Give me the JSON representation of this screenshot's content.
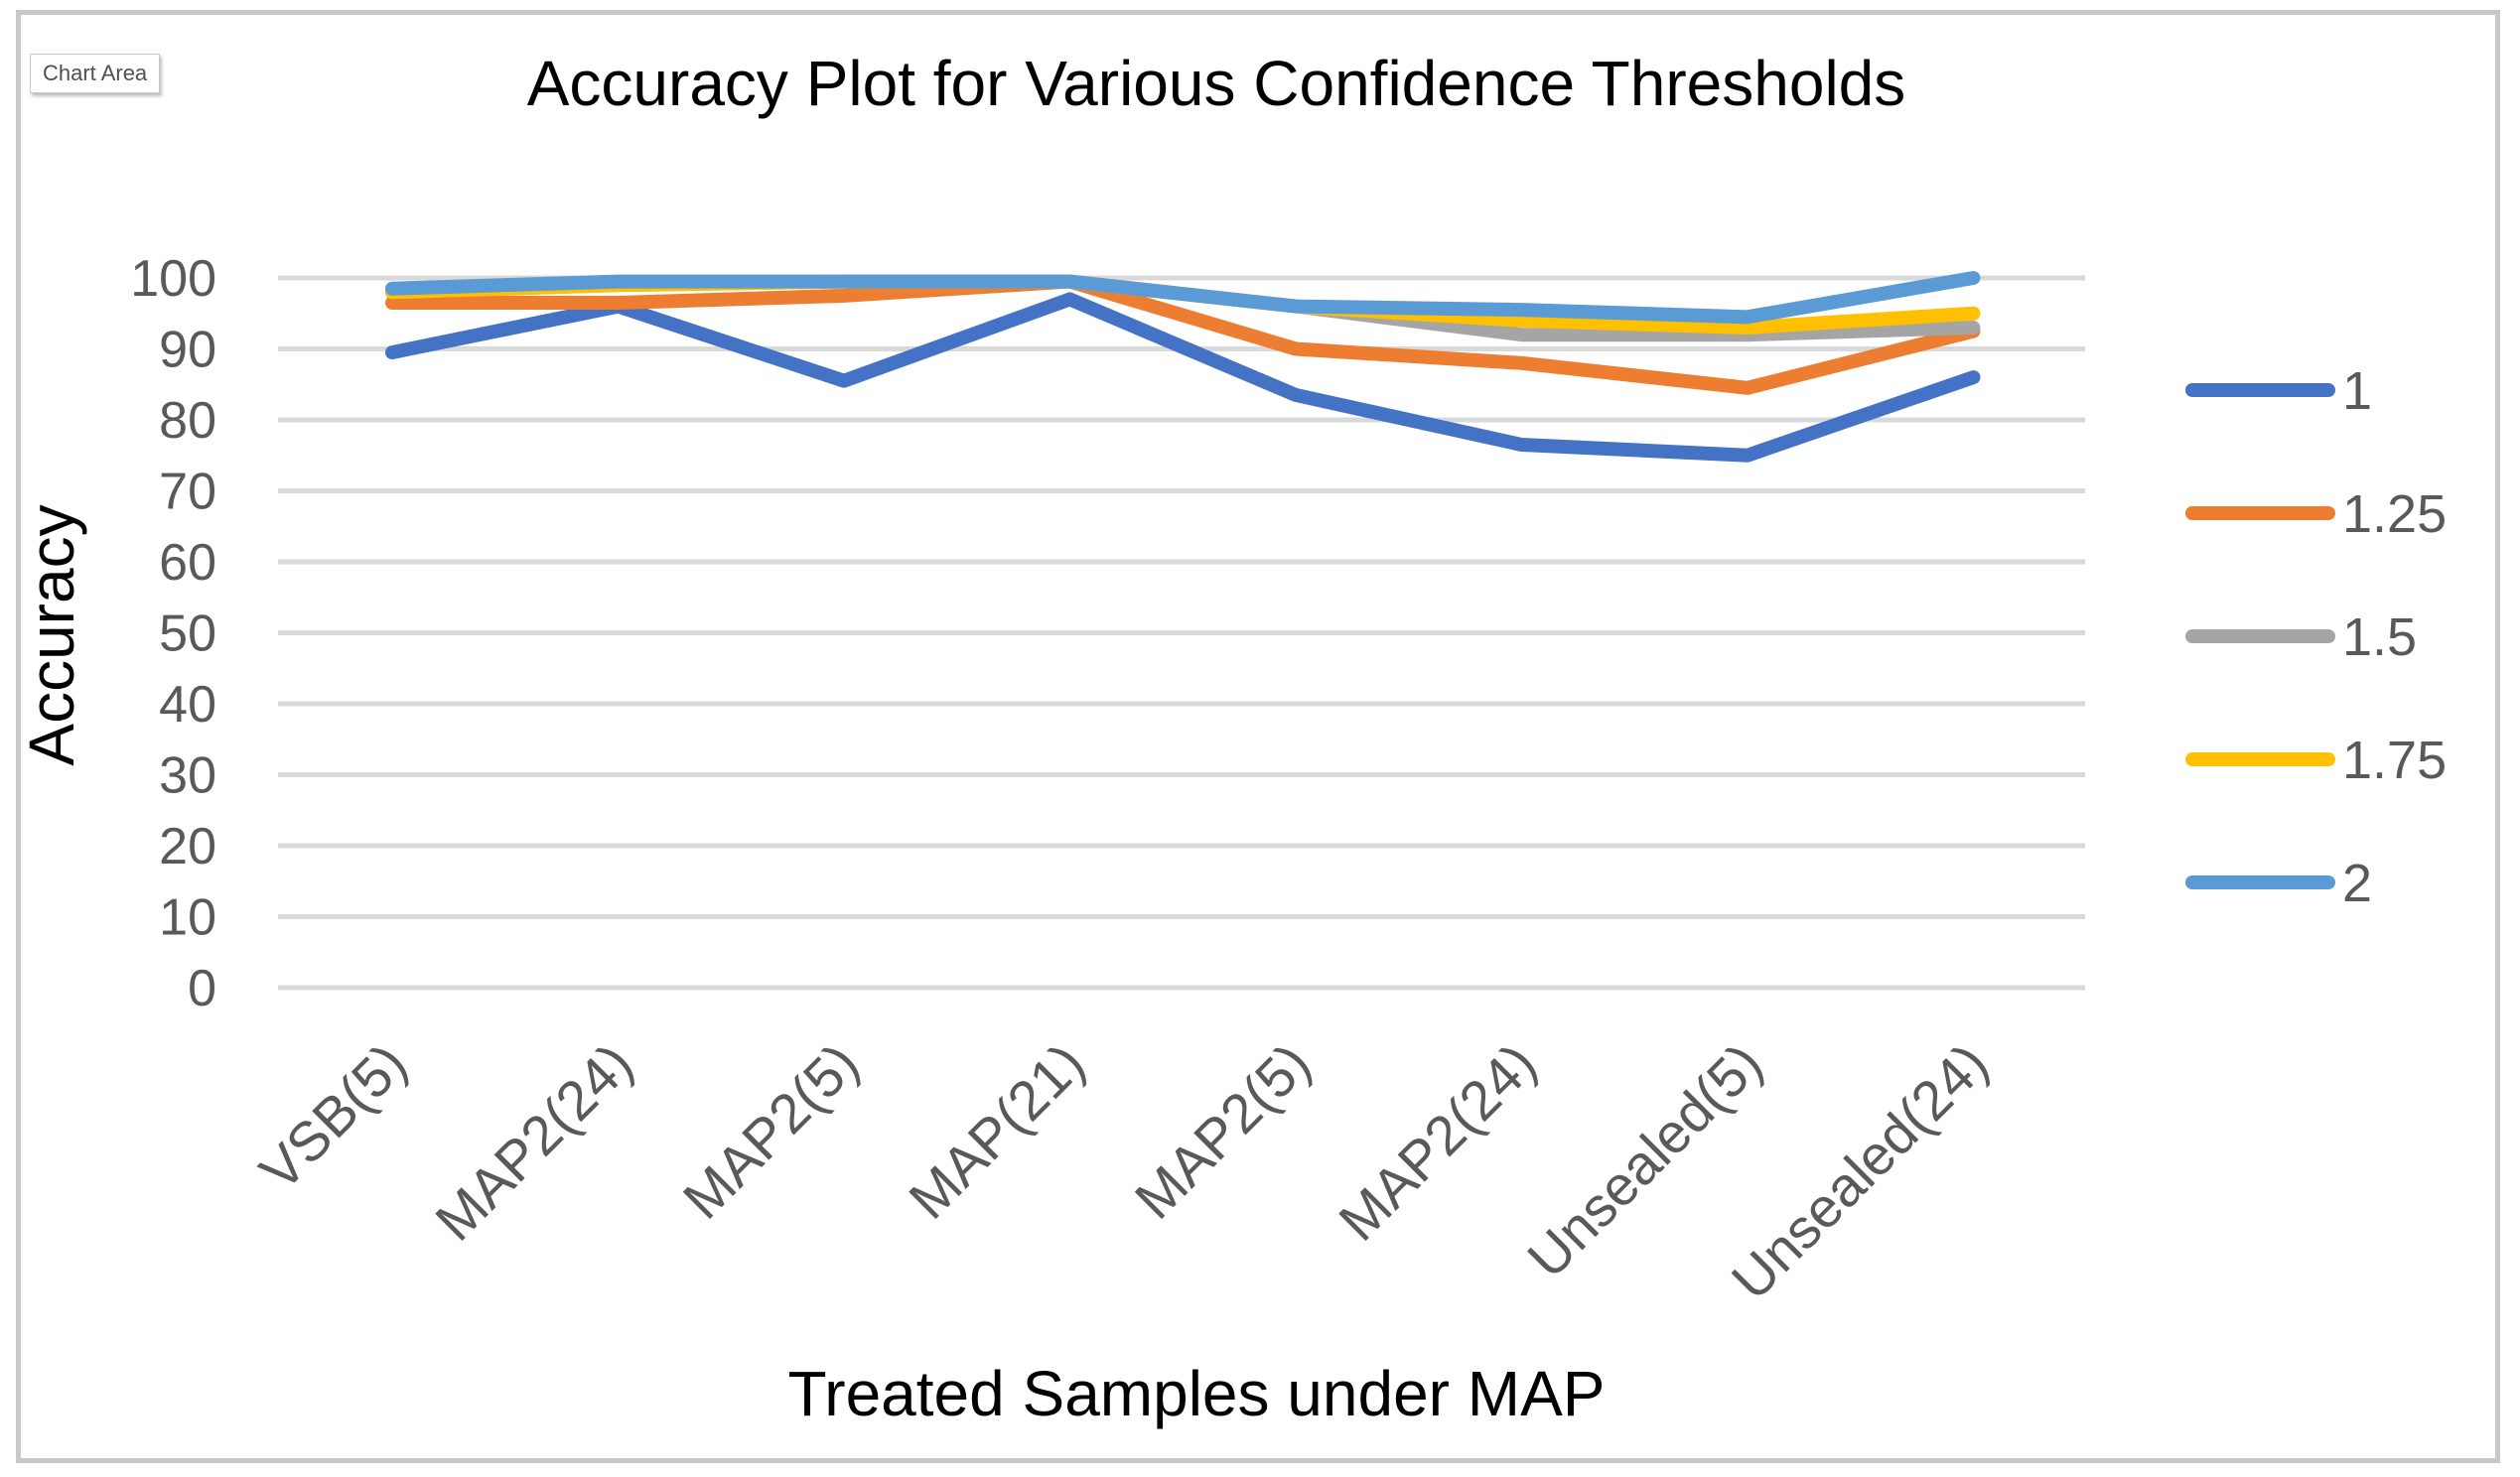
{
  "chart_area_label": "Chart Area",
  "chart_data": {
    "type": "line",
    "title": "Accuracy Plot for Various Confidence Thresholds",
    "xlabel": "Treated Samples under MAP",
    "ylabel": "Accuracy",
    "ylim": [
      0,
      100
    ],
    "yticks": [
      0,
      10,
      20,
      30,
      40,
      50,
      60,
      70,
      80,
      90,
      100
    ],
    "grid": true,
    "legend_position": "right",
    "categories": [
      "VSB(5)",
      "MAP2(24)",
      "MAP2(5)",
      "MAP(21)",
      "MAP2(5)",
      "MAP2(24)",
      "Unsealed(5)",
      "Unsealed(24)"
    ],
    "series": [
      {
        "name": "1",
        "color": "#4472C4",
        "values": [
          89.5,
          96,
          85.5,
          97,
          83.5,
          76.5,
          75,
          86
        ]
      },
      {
        "name": "1.25",
        "color": "#ED7D31",
        "values": [
          96.5,
          96.5,
          97.5,
          99.5,
          90,
          88,
          84.5,
          92.5
        ]
      },
      {
        "name": "1.5",
        "color": "#A5A5A5",
        "values": [
          98,
          99,
          99.5,
          99.5,
          96,
          92,
          92,
          93
        ]
      },
      {
        "name": "1.75",
        "color": "#FFC000",
        "values": [
          98,
          99,
          99.5,
          99.5,
          96,
          94,
          93,
          95
        ]
      },
      {
        "name": "2",
        "color": "#5B9BD5",
        "values": [
          98.5,
          99.5,
          99.5,
          99.5,
          96,
          95.5,
          94.5,
          100
        ]
      }
    ]
  }
}
